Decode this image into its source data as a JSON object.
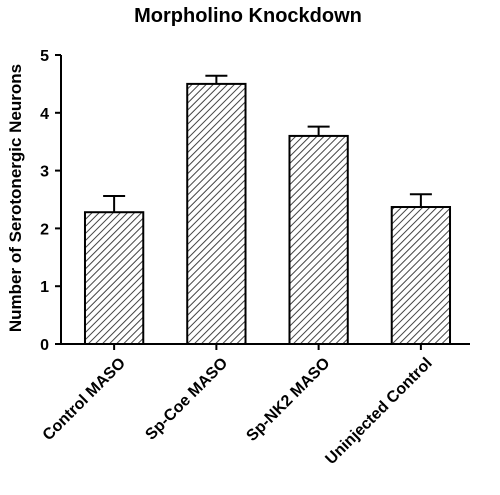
{
  "chart_data": {
    "type": "bar",
    "title": "Morpholino Knockdown",
    "xlabel": "",
    "ylabel": "Number of Serotonergic Neurons",
    "categories": [
      "Control MASO",
      "Sp-Coe MASO",
      "Sp-NK2 MASO",
      "Uninjected Control"
    ],
    "values": [
      2.28,
      4.5,
      3.6,
      2.37
    ],
    "error_upper": [
      0.28,
      0.14,
      0.16,
      0.22
    ],
    "ylim": [
      0,
      5
    ],
    "yticks": [
      "0",
      "1",
      "2",
      "3",
      "4",
      "5"
    ],
    "grid": false,
    "legend": "none",
    "bar_fill": "hatched",
    "colors": {
      "bar_stroke": "#000000",
      "hatch": "#444444",
      "bar_background": "#ffffff",
      "axis": "#000000",
      "text": "#000000"
    }
  }
}
